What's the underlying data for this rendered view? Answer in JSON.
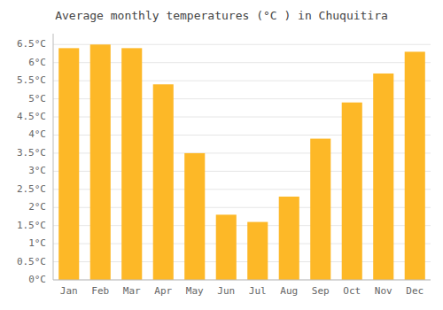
{
  "chart_data": {
    "type": "bar",
    "title": "Average monthly temperatures (°C ) in Chuquitira",
    "categories": [
      "Jan",
      "Feb",
      "Mar",
      "Apr",
      "May",
      "Jun",
      "Jul",
      "Aug",
      "Sep",
      "Oct",
      "Nov",
      "Dec"
    ],
    "values": [
      6.4,
      6.5,
      6.4,
      5.4,
      3.5,
      1.8,
      1.6,
      2.3,
      3.9,
      4.9,
      5.7,
      6.3
    ],
    "color": "#FDB827",
    "ylim": [
      0,
      6.8
    ],
    "yticks": [
      {
        "value": 0,
        "label": "0°C"
      },
      {
        "value": 0.5,
        "label": "0.5°C"
      },
      {
        "value": 1,
        "label": "1°C"
      },
      {
        "value": 1.5,
        "label": "1.5°C"
      },
      {
        "value": 2,
        "label": "2°C"
      },
      {
        "value": 2.5,
        "label": "2.5°C"
      },
      {
        "value": 3,
        "label": "3°C"
      },
      {
        "value": 3.5,
        "label": "3.5°C"
      },
      {
        "value": 4,
        "label": "4°C"
      },
      {
        "value": 4.5,
        "label": "4.5°C"
      },
      {
        "value": 5,
        "label": "5°C"
      },
      {
        "value": 5.5,
        "label": "5.5°C"
      },
      {
        "value": 6,
        "label": "6°C"
      },
      {
        "value": 6.5,
        "label": "6.5°C"
      }
    ],
    "grid": true
  }
}
